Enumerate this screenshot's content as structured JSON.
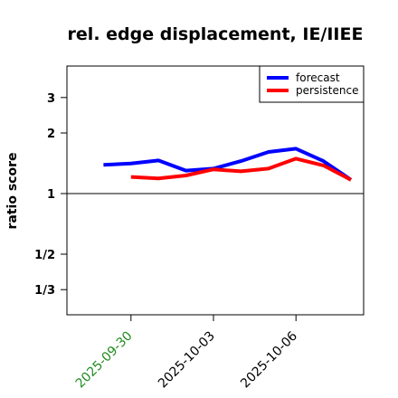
{
  "chart_data": {
    "type": "line",
    "title": "rel. edge displacement, IE/IIEE",
    "xlabel": "",
    "ylabel": "ratio score",
    "x": [
      "2025-09-29",
      "2025-09-30",
      "2025-10-01",
      "2025-10-02",
      "2025-10-03",
      "2025-10-04",
      "2025-10-05",
      "2025-10-06",
      "2025-10-07",
      "2025-10-08"
    ],
    "xlim": [
      "2025-09-28",
      "2025-10-08"
    ],
    "x_ticks": [
      {
        "value": "2025-09-30",
        "label": "2025-09-30",
        "color": "#228b22"
      },
      {
        "value": "2025-10-03",
        "label": "2025-10-03",
        "color": "#000000"
      },
      {
        "value": "2025-10-06",
        "label": "2025-10-06",
        "color": "#000000"
      }
    ],
    "y_scale": "log",
    "ylim": [
      0.25,
      4.3
    ],
    "y_ticks": [
      {
        "value": 0.3333,
        "label": "1/3"
      },
      {
        "value": 0.5,
        "label": "1/2"
      },
      {
        "value": 1,
        "label": "1"
      },
      {
        "value": 2,
        "label": "2"
      },
      {
        "value": 3,
        "label": "3"
      }
    ],
    "reference_line": 1,
    "grid": false,
    "legend_position": "top-right",
    "series": [
      {
        "name": "forecast",
        "color": "#0000ff",
        "values": [
          1.39,
          1.41,
          1.46,
          1.3,
          1.33,
          1.45,
          1.61,
          1.67,
          1.45,
          1.17
        ]
      },
      {
        "name": "persistence",
        "color": "#ff0000",
        "values": [
          null,
          1.21,
          1.19,
          1.23,
          1.32,
          1.29,
          1.33,
          1.49,
          1.38,
          1.17
        ]
      }
    ]
  }
}
